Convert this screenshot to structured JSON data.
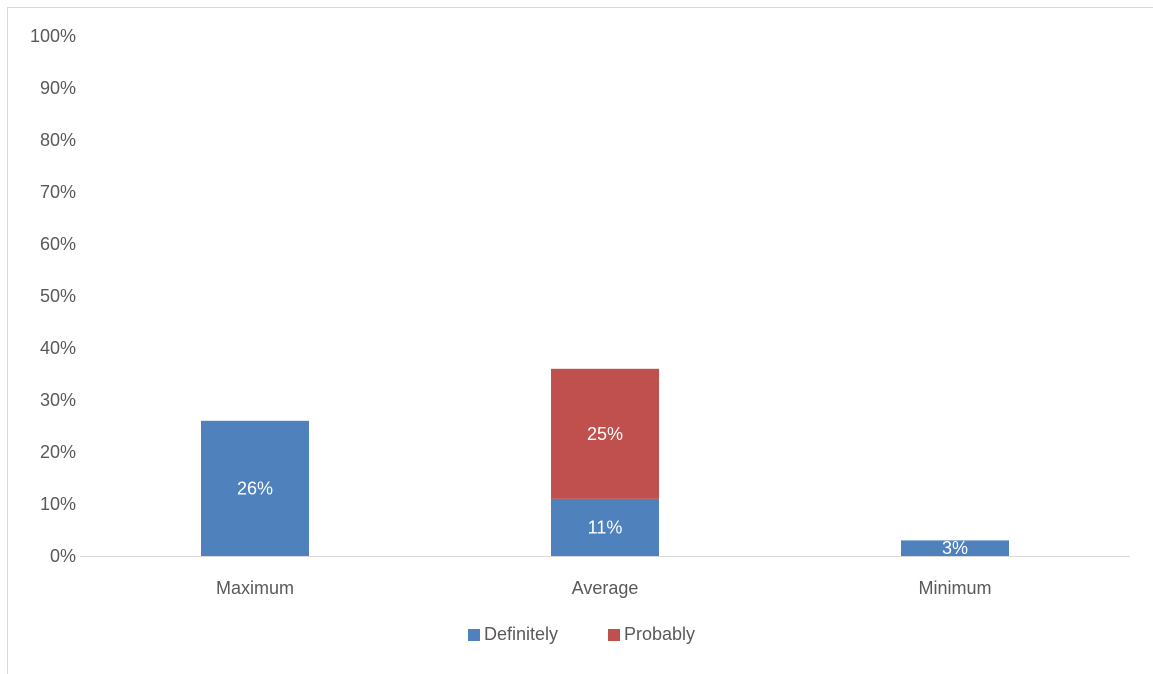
{
  "chart_data": {
    "type": "bar",
    "stacked": true,
    "title": "",
    "xlabel": "",
    "ylabel": "",
    "categories": [
      "Maximum",
      "Average",
      "Minimum"
    ],
    "series": [
      {
        "name": "Definitely",
        "color": "#4f81bd",
        "values": [
          26,
          11,
          3
        ],
        "labels": [
          "26%",
          "11%",
          "3%"
        ]
      },
      {
        "name": "Probably",
        "color": "#c0504d",
        "values": [
          0,
          25,
          0
        ],
        "labels": [
          "",
          "25%",
          ""
        ]
      }
    ],
    "ylim": [
      0,
      100
    ],
    "yticks": [
      0,
      10,
      20,
      30,
      40,
      50,
      60,
      70,
      80,
      90,
      100
    ],
    "ytick_labels": [
      "0%",
      "10%",
      "20%",
      "30%",
      "40%",
      "50%",
      "60%",
      "70%",
      "80%",
      "90%",
      "100%"
    ],
    "grid": false,
    "legend_position": "bottom"
  }
}
